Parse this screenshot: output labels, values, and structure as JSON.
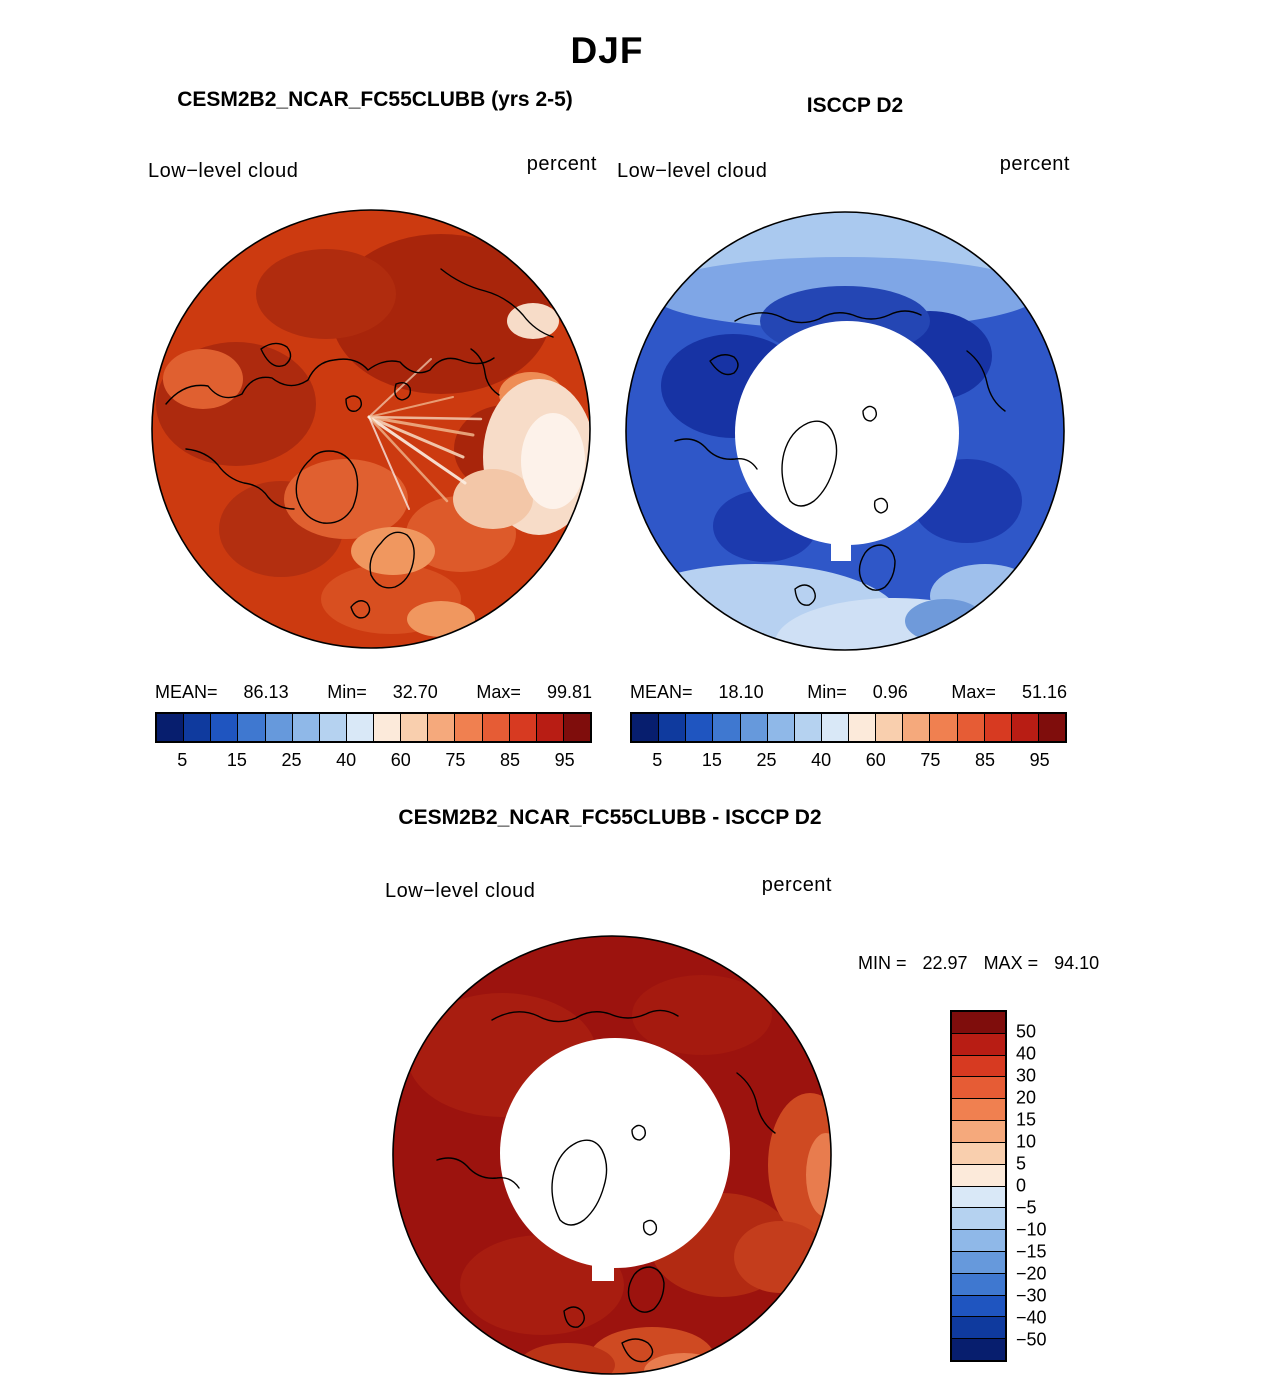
{
  "figure": {
    "season_title": "DJF",
    "panels": [
      {
        "id": "model",
        "title": "CESM2B2_NCAR_FC55CLUBB (yrs 2-5)",
        "field_label": "Low−level cloud",
        "units_label": "percent",
        "stats": {
          "mean_label": "MEAN=",
          "mean": "86.13",
          "min_label": "Min=",
          "min": "32.70",
          "max_label": "Max=",
          "max": "99.81"
        }
      },
      {
        "id": "obs",
        "title": "ISCCP D2",
        "field_label": "Low−level cloud",
        "units_label": "percent",
        "stats": {
          "mean_label": "MEAN=",
          "mean": "18.10",
          "min_label": "Min=",
          "min": "0.96",
          "max_label": "Max=",
          "max": "51.16"
        }
      },
      {
        "id": "diff",
        "title": "CESM2B2_NCAR_FC55CLUBB - ISCCP D2",
        "field_label": "Low−level cloud",
        "units_label": "percent",
        "stats": {
          "min_label": "MIN =",
          "min": "22.97",
          "max_label": "MAX =",
          "max": "94.10"
        }
      }
    ]
  },
  "colorbars": {
    "cloud": {
      "orientation": "horizontal",
      "colors": [
        "#071e6e",
        "#0f3a9e",
        "#1f55c0",
        "#3f78d0",
        "#6699dc",
        "#8fb8e8",
        "#b5d2f0",
        "#d9e8f7",
        "#fceada",
        "#f9cfae",
        "#f5a97c",
        "#f08050",
        "#e65c35",
        "#d73a21",
        "#b81d14",
        "#7f0d0c"
      ],
      "tick_labels": [
        "5",
        "15",
        "25",
        "40",
        "60",
        "75",
        "85",
        "95"
      ],
      "tick_positions": [
        1,
        3,
        5,
        7,
        9,
        11,
        13,
        15
      ]
    },
    "diff": {
      "orientation": "vertical",
      "colors": [
        "#7f0d0c",
        "#b81d14",
        "#d73a21",
        "#e65c35",
        "#f08050",
        "#f5a97c",
        "#f9cfae",
        "#fceada",
        "#d9e8f7",
        "#b5d2f0",
        "#8fb8e8",
        "#6699dc",
        "#3f78d0",
        "#1f55c0",
        "#0f3a9e",
        "#071e6e"
      ],
      "tick_labels": [
        "50",
        "40",
        "30",
        "20",
        "15",
        "10",
        "5",
        "0",
        "−5",
        "−10",
        "−15",
        "−20",
        "−30",
        "−40",
        "−50"
      ],
      "tick_positions": [
        1,
        2,
        3,
        4,
        5,
        6,
        7,
        8,
        9,
        10,
        11,
        12,
        13,
        14,
        15
      ]
    }
  },
  "chart_data": [
    {
      "type": "heatmap",
      "projection": "north-polar-stereographic",
      "season": "DJF",
      "title": "CESM2B2_NCAR_FC55CLUBB (yrs 2-5)",
      "variable": "Low-level cloud",
      "units": "percent",
      "mean": 86.13,
      "min": 32.7,
      "max": 99.81,
      "contour_levels": [
        5,
        10,
        15,
        20,
        25,
        30,
        40,
        50,
        60,
        70,
        75,
        80,
        85,
        90,
        95
      ],
      "legend_ticks": [
        5,
        15,
        25,
        40,
        60,
        75,
        85,
        95
      ],
      "legend_position": "bottom",
      "dominant_values": "mostly 85-99 percent (deep red shades), pale patch near North Atlantic sector"
    },
    {
      "type": "heatmap",
      "projection": "north-polar-stereographic",
      "season": "DJF",
      "title": "ISCCP D2",
      "variable": "Low-level cloud",
      "units": "percent",
      "mean": 18.1,
      "min": 0.96,
      "max": 51.16,
      "contour_levels": [
        5,
        10,
        15,
        20,
        25,
        30,
        40,
        50,
        60,
        70,
        75,
        80,
        85,
        90,
        95
      ],
      "legend_ticks": [
        5,
        15,
        25,
        40,
        60,
        75,
        85,
        95
      ],
      "legend_position": "bottom",
      "dominant_values": "mostly 5-30 percent (blue shades), white no-data disk over the pole"
    },
    {
      "type": "heatmap",
      "projection": "north-polar-stereographic",
      "season": "DJF",
      "title": "CESM2B2_NCAR_FC55CLUBB - ISCCP D2",
      "variable": "Low-level cloud difference",
      "units": "percent",
      "min": 22.97,
      "max": 94.1,
      "contour_levels": [
        -50,
        -40,
        -30,
        -20,
        -15,
        -10,
        -5,
        0,
        5,
        10,
        15,
        20,
        30,
        40,
        50
      ],
      "legend_ticks": [
        50,
        40,
        30,
        20,
        15,
        10,
        5,
        0,
        -5,
        -10,
        -15,
        -20,
        -30,
        -40,
        -50
      ],
      "legend_position": "right",
      "dominant_values": "mostly greater than +50 percent (dark red), white no-data disk over the pole"
    }
  ]
}
